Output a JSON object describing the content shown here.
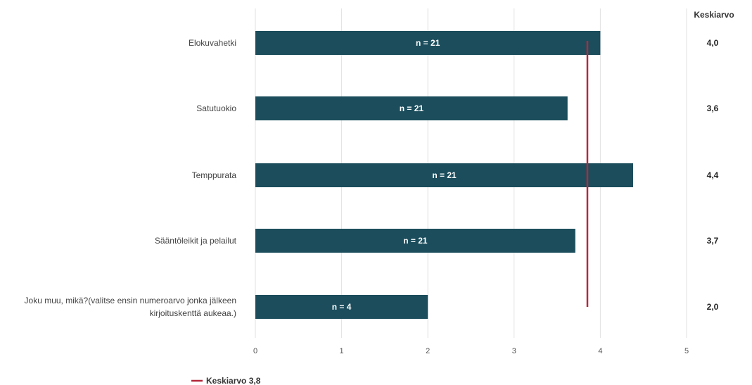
{
  "chart_data": {
    "type": "bar",
    "orientation": "horizontal",
    "categories": [
      "Elokuvahetki",
      "Satutuokio",
      "Temppurata",
      "Sääntöleikit ja pelailut",
      "Joku muu, mikä?(valitse ensin numeroarvo jonka jälkeen kirjoituskenttä aukeaa.)"
    ],
    "category_lines": [
      [
        "Elokuvahetki"
      ],
      [
        "Satutuokio"
      ],
      [
        "Temppurata"
      ],
      [
        "Sääntöleikit ja pelailut"
      ],
      [
        "Joku muu, mikä?(valitse ensin numeroarvo jonka jälkeen",
        "kirjoituskenttä aukeaa.)"
      ]
    ],
    "values": [
      4.0,
      3.62,
      4.38,
      3.71,
      2.0
    ],
    "bar_labels": [
      "n = 21",
      "n = 21",
      "n = 21",
      "n = 21",
      "n = 4"
    ],
    "mean_column_header": "Keskiarvo",
    "mean_values": [
      "4,0",
      "3,6",
      "4,4",
      "3,7",
      "2,0"
    ],
    "xlim": [
      0,
      5
    ],
    "xticks": [
      0,
      1,
      2,
      3,
      4,
      5
    ],
    "grid": true,
    "reference_line": {
      "value": 3.85,
      "label": "Keskiarvo 3,8",
      "color": "#b5283a"
    },
    "bar_color": "#1b4d5c",
    "legend_position": "bottom-left"
  }
}
